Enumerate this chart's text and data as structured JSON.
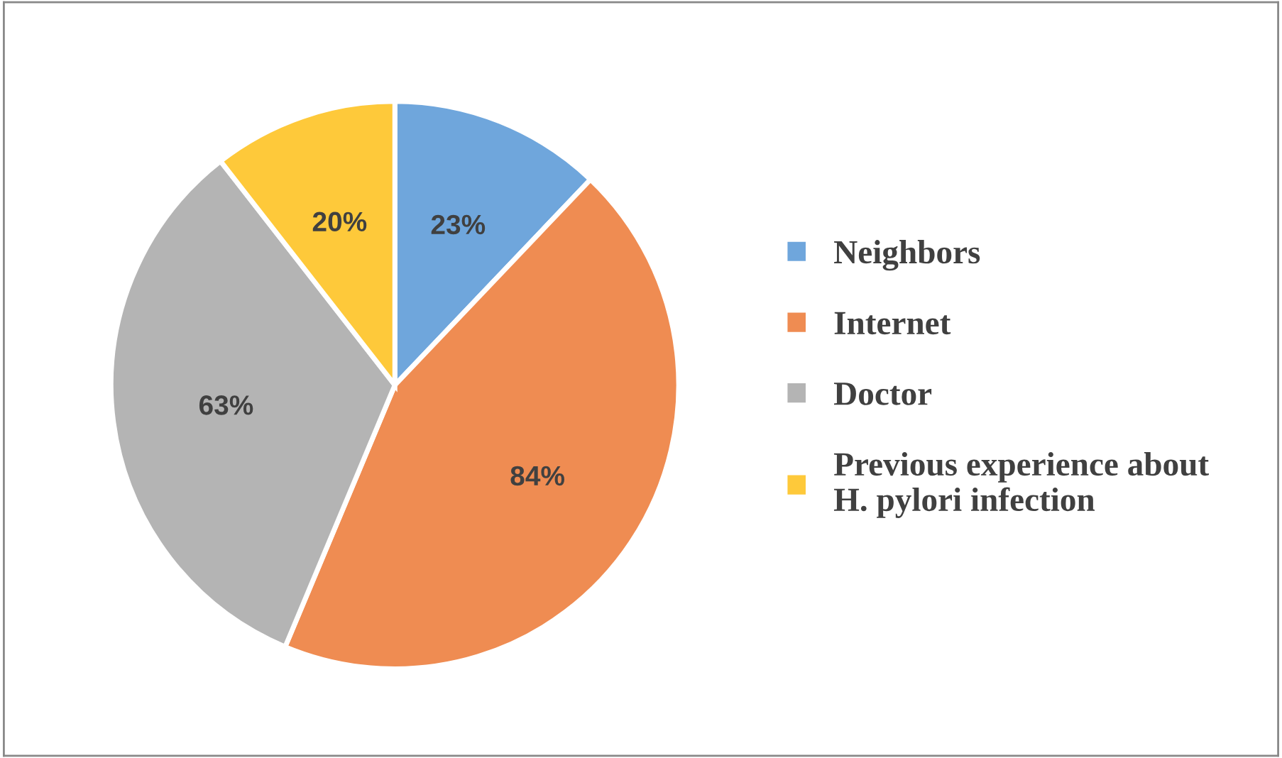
{
  "chart_data": {
    "type": "pie",
    "categories": [
      "Neighbors",
      "Internet",
      "Doctor",
      "Previous experience about\nH. pylori infection"
    ],
    "values": [
      23,
      84,
      63,
      20
    ],
    "value_labels": [
      "23%",
      "84%",
      "63%",
      "20%"
    ],
    "colors": [
      "#6fa6dc",
      "#ef8c52",
      "#b4b4b4",
      "#fec93a"
    ],
    "legend": "right"
  }
}
